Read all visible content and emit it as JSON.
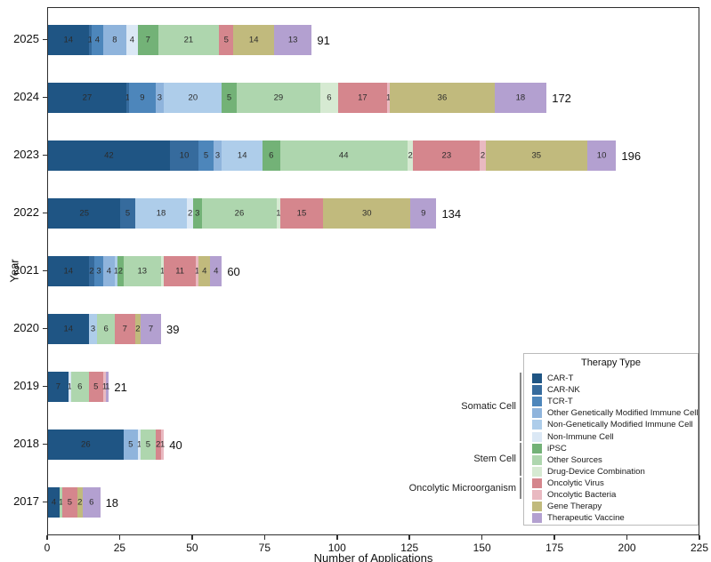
{
  "chart_data": {
    "type": "bar",
    "orientation": "horizontal",
    "stacked": true,
    "xlabel": "Number of Applications",
    "ylabel": "Year",
    "xlim": [
      0,
      225
    ],
    "xticks": [
      0,
      25,
      50,
      75,
      100,
      125,
      150,
      175,
      200,
      225
    ],
    "categories": [
      "2025",
      "2024",
      "2023",
      "2022",
      "2021",
      "2020",
      "2019",
      "2018",
      "2017"
    ],
    "totals": [
      91,
      172,
      196,
      134,
      60,
      39,
      21,
      40,
      18
    ],
    "series": [
      {
        "name": "CAR-T",
        "color": "#1f5584",
        "values": [
          14,
          27,
          42,
          25,
          14,
          14,
          7,
          26,
          4
        ]
      },
      {
        "name": "CAR-NK",
        "color": "#366b9d",
        "values": [
          1,
          1,
          10,
          5,
          2,
          0,
          0,
          0,
          0
        ]
      },
      {
        "name": "TCR-T",
        "color": "#4d86bb",
        "values": [
          4,
          9,
          5,
          0,
          3,
          0,
          0,
          0,
          0
        ]
      },
      {
        "name": "Other Genetically Modified Immune Cell",
        "color": "#8fb4dc",
        "values": [
          8,
          3,
          3,
          0,
          4,
          0,
          0,
          5,
          0
        ]
      },
      {
        "name": "Non-Genetically Modified Immune Cell",
        "color": "#aecdea",
        "values": [
          0,
          20,
          14,
          18,
          1,
          3,
          0,
          0,
          0
        ]
      },
      {
        "name": "Non-Immune Cell",
        "color": "#dbe8f5",
        "values": [
          4,
          0,
          0,
          2,
          0,
          0,
          1,
          1,
          0
        ]
      },
      {
        "name": "iPSC",
        "color": "#73b277",
        "values": [
          7,
          5,
          6,
          3,
          2,
          0,
          0,
          0,
          0
        ]
      },
      {
        "name": "Other Sources",
        "color": "#aed6ae",
        "values": [
          21,
          29,
          44,
          26,
          13,
          6,
          6,
          5,
          1
        ]
      },
      {
        "name": "Drug-Device Combination",
        "color": "#d6ead2",
        "values": [
          0,
          6,
          2,
          1,
          1,
          0,
          0,
          0,
          0
        ]
      },
      {
        "name": "Oncolytic Virus",
        "color": "#d5868d",
        "values": [
          5,
          17,
          23,
          15,
          11,
          7,
          5,
          2,
          5
        ]
      },
      {
        "name": "Oncolytic Bacteria",
        "color": "#e9b9c1",
        "values": [
          0,
          1,
          2,
          0,
          1,
          0,
          1,
          1,
          0
        ]
      },
      {
        "name": "Gene Therapy",
        "color": "#c1ba7d",
        "values": [
          14,
          36,
          35,
          30,
          4,
          2,
          0,
          0,
          2
        ]
      },
      {
        "name": "Therapeutic Vaccine",
        "color": "#b3a0d0",
        "values": [
          13,
          18,
          10,
          9,
          4,
          7,
          1,
          0,
          6
        ]
      }
    ],
    "legend": {
      "title": "Therapy Type",
      "position": "lower right"
    },
    "groups": [
      {
        "label": "Somatic Cell",
        "first_item": 0,
        "last_item": 5
      },
      {
        "label": "Stem Cell",
        "first_item": 6,
        "last_item": 8
      },
      {
        "label": "Oncolytic Microorganism",
        "first_item": 9,
        "last_item": 10
      }
    ]
  }
}
